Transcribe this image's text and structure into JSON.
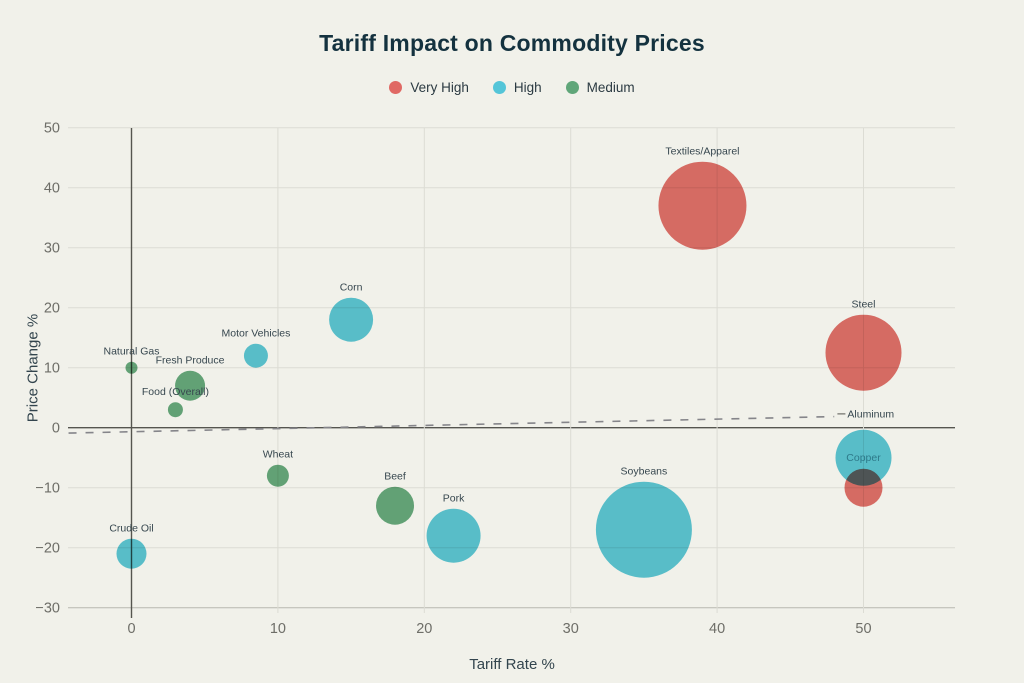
{
  "page": {
    "background": "#f1f1ea",
    "title": "Tariff Impact on Commodity Prices"
  },
  "legend": [
    {
      "label": "Very High",
      "color": "#e06964"
    },
    {
      "label": "High",
      "color": "#54c5d8"
    },
    {
      "label": "Medium",
      "color": "#60a679"
    }
  ],
  "chart_data": {
    "type": "scatter",
    "title": "Tariff Impact on Commodity Prices",
    "xlabel": "Tariff Rate %",
    "ylabel": "Price Change %",
    "xlim": [
      -4.3,
      56.4
    ],
    "ylim": [
      -30,
      50
    ],
    "x_ticks": [
      0,
      10,
      20,
      30,
      40,
      50
    ],
    "y_ticks": [
      50,
      40,
      30,
      20,
      10,
      0,
      -10,
      -20,
      -30
    ],
    "grid": true,
    "legend_position": "top-center",
    "categories": {
      "Very High": "#e06964",
      "High": "#54c5d8",
      "Medium": "#60a679"
    },
    "trendline": {
      "style": "dashed",
      "color": "#85858a",
      "x1": -4.3,
      "y1": -0.9,
      "x2": 48.0,
      "y2": 1.85
    },
    "points": [
      {
        "label": "Natural Gas",
        "x": 0,
        "y": 10,
        "radius_px": 6,
        "category": "Medium"
      },
      {
        "label": "Crude Oil",
        "x": 0,
        "y": -21,
        "radius_px": 15,
        "category": "High"
      },
      {
        "label": "Food (Overall)",
        "x": 3,
        "y": 3,
        "radius_px": 7.5,
        "category": "Medium"
      },
      {
        "label": "Fresh Produce",
        "x": 4,
        "y": 7,
        "radius_px": 15,
        "category": "Medium"
      },
      {
        "label": "Motor Vehicles",
        "x": 8.5,
        "y": 12,
        "radius_px": 12,
        "category": "High"
      },
      {
        "label": "Wheat",
        "x": 10,
        "y": -8,
        "radius_px": 11,
        "category": "Medium"
      },
      {
        "label": "Corn",
        "x": 15,
        "y": 18,
        "radius_px": 22,
        "category": "High"
      },
      {
        "label": "Beef",
        "x": 18,
        "y": -13,
        "radius_px": 19,
        "category": "Medium"
      },
      {
        "label": "Pork",
        "x": 22,
        "y": -18,
        "radius_px": 27,
        "category": "High"
      },
      {
        "label": "Soybeans",
        "x": 35,
        "y": -17,
        "radius_px": 48,
        "category": "High"
      },
      {
        "label": "Textiles/Apparel",
        "x": 39,
        "y": 37,
        "radius_px": 44,
        "category": "Very High"
      },
      {
        "label": "Steel",
        "x": 50,
        "y": 12.5,
        "radius_px": 38,
        "category": "Very High"
      },
      {
        "label": "Aluminum",
        "x": 50,
        "y": -10,
        "radius_px": 19,
        "category": "Very High",
        "label_mode": "leader",
        "label_x": 48.9,
        "label_y": 2.3
      },
      {
        "label": "Copper",
        "x": 50,
        "y": -5,
        "radius_px": 28,
        "category": "High",
        "label_mode": "inside",
        "label_color": "#2e7a8a"
      }
    ]
  }
}
